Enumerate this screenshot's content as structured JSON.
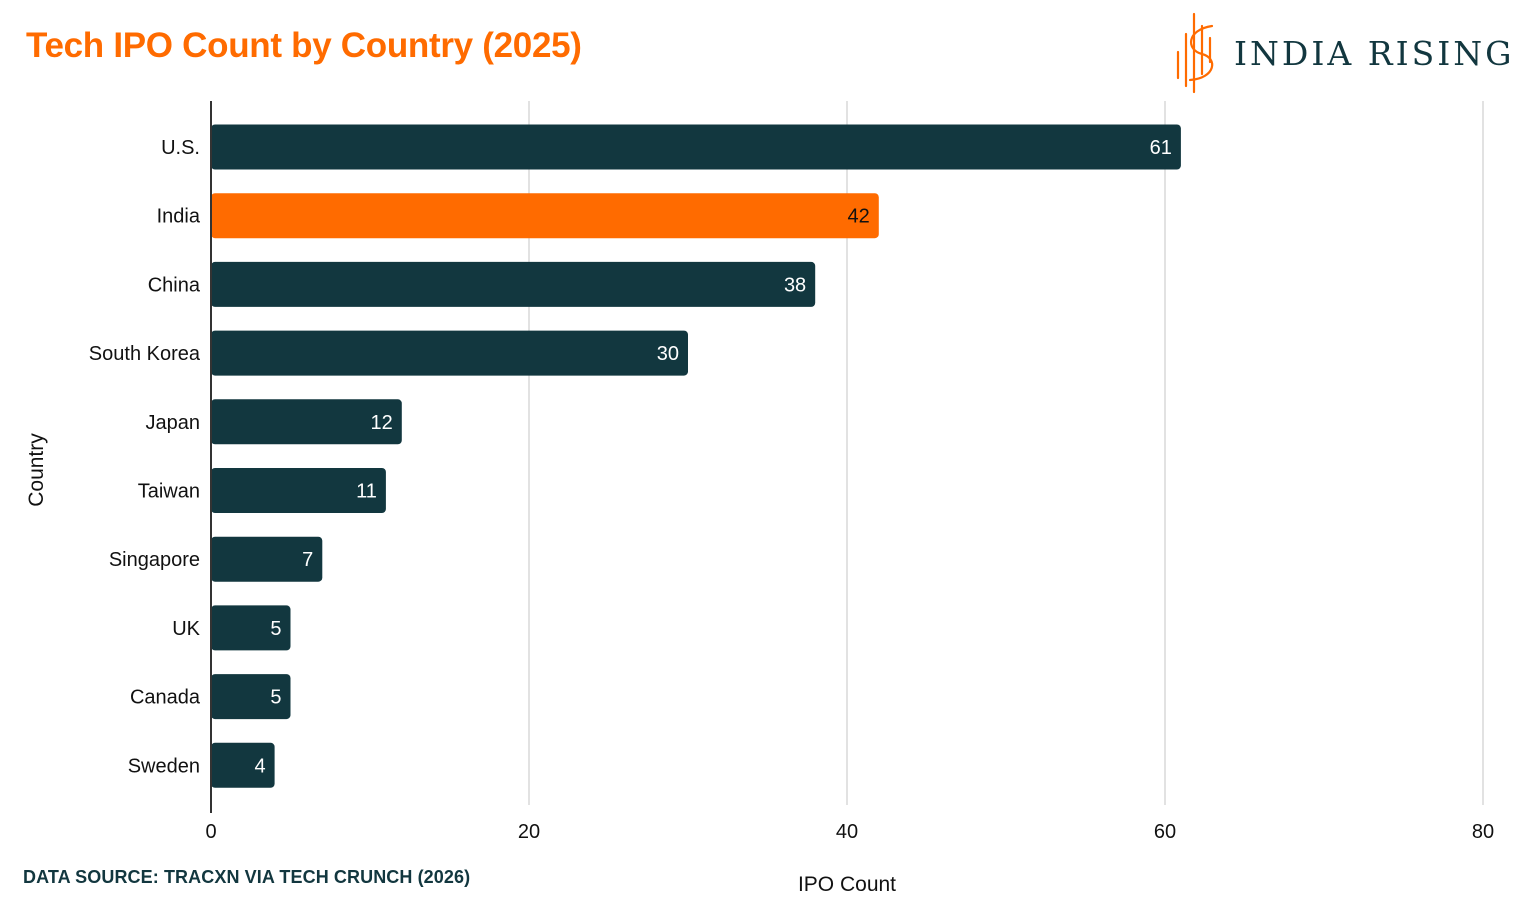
{
  "header": {
    "title": "Tech IPO Count by Country (2025)",
    "brand_name": "INDIA RISING"
  },
  "footer": {
    "source": "DATA SOURCE: TRACXN VIA TECH CRUNCH (2026)"
  },
  "colors": {
    "accent": "#ff6b00",
    "bar": "#12373f",
    "grid": "#d9d9d9",
    "axis": "#333333",
    "title": "#ff6b00",
    "source_text": "#12373f",
    "brand_text": "#12373f",
    "label_on_dark": "#ffffff",
    "label_on_accent": "#111111"
  },
  "icons": {
    "brand_logo": "india-rising-logo-icon"
  },
  "chart_data": {
    "type": "bar",
    "orientation": "horizontal",
    "title": "Tech IPO Count by Country (2025)",
    "xlabel": "IPO Count",
    "ylabel": "Country",
    "xlim": [
      0,
      80
    ],
    "xticks": [
      0,
      20,
      40,
      60,
      80
    ],
    "grid": true,
    "categories": [
      "U.S.",
      "India",
      "China",
      "South Korea",
      "Japan",
      "Taiwan",
      "Singapore",
      "UK",
      "Canada",
      "Sweden"
    ],
    "values": [
      61,
      42,
      38,
      30,
      12,
      11,
      7,
      5,
      5,
      4
    ],
    "highlight": "India",
    "data_labels": true
  }
}
